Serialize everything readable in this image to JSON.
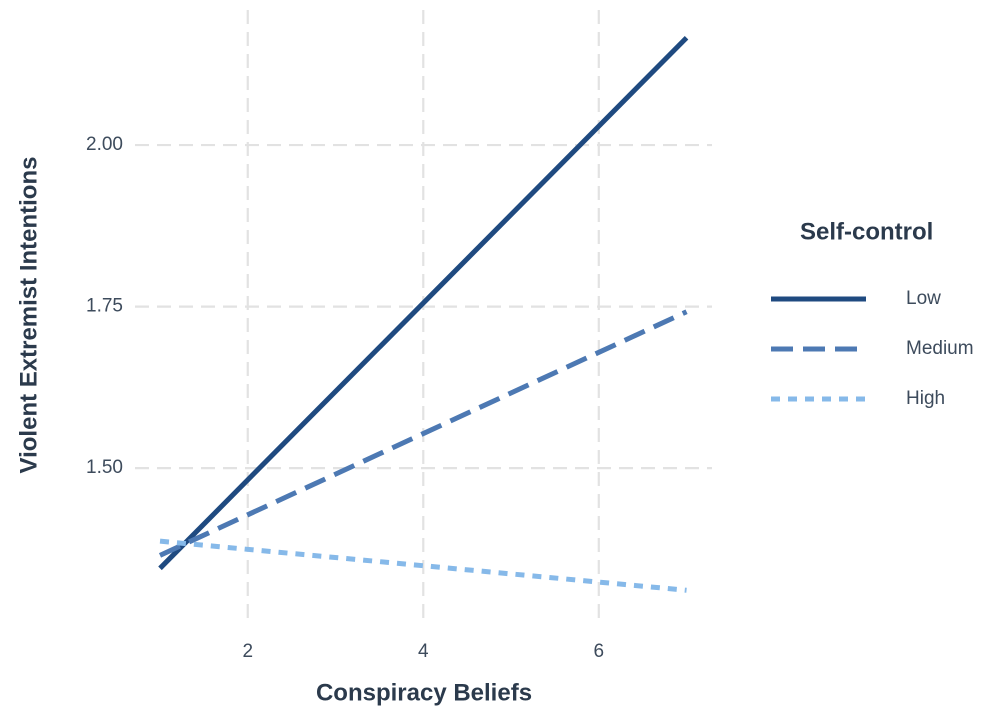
{
  "chart_data": {
    "type": "line",
    "xlabel": "Conspiracy Beliefs",
    "ylabel": "Violent Extremist Intentions",
    "x": [
      1,
      7
    ],
    "series": [
      {
        "name": "Low",
        "color": "#1f4a80",
        "dash": "solid",
        "values": [
          1.345,
          2.166
        ]
      },
      {
        "name": "Medium",
        "color": "#4d79b3",
        "dash": "dashed",
        "values": [
          1.365,
          1.742
        ]
      },
      {
        "name": "High",
        "color": "#86b9e9",
        "dash": "dotted",
        "values": [
          1.387,
          1.311
        ]
      }
    ],
    "legend_title": "Self-control",
    "legend": "right",
    "xlim": [
      0.715,
      7.29
    ],
    "ylim": [
      1.265,
      2.209
    ],
    "xticks": [
      2,
      4,
      6
    ],
    "yticks": [
      {
        "value": 1.5,
        "label": "1.50"
      },
      {
        "value": 1.75,
        "label": "1.75"
      },
      {
        "value": 2,
        "label": "2.00"
      }
    ],
    "grid": true
  }
}
